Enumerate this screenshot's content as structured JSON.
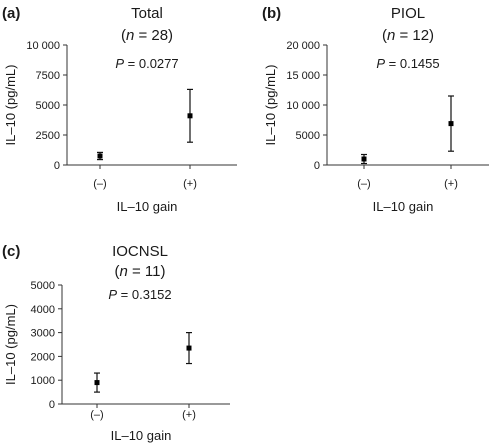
{
  "chart_data": [
    {
      "type": "scatter",
      "panel": "(a)",
      "title": "Total",
      "n_label": "n",
      "n_value": "28",
      "p_label": "P",
      "p_value": "0.0277",
      "xlabel": "IL–10 gain",
      "ylabel": "IL–10 (pg/mL)",
      "categories": [
        "(–)",
        "(+)"
      ],
      "ylim": [
        0,
        10000
      ],
      "yticks": [
        0,
        2500,
        5000,
        7500,
        10000
      ],
      "ytick_labels": [
        "0",
        "2500",
        "5000",
        "7500",
        "10 000"
      ],
      "points": [
        {
          "category": "(–)",
          "value": 750,
          "low": 450,
          "high": 1050
        },
        {
          "category": "(+)",
          "value": 4100,
          "low": 1900,
          "high": 6300
        }
      ]
    },
    {
      "type": "scatter",
      "panel": "(b)",
      "title": "PIOL",
      "n_label": "n",
      "n_value": "12",
      "p_label": "P",
      "p_value": "0.1455",
      "xlabel": "IL–10 gain",
      "ylabel": "IL–10 (pg/mL)",
      "categories": [
        "(–)",
        "(+)"
      ],
      "ylim": [
        0,
        20000
      ],
      "yticks": [
        0,
        5000,
        10000,
        15000,
        20000
      ],
      "ytick_labels": [
        "0",
        "5000",
        "10 000",
        "15 000",
        "20 000"
      ],
      "points": [
        {
          "category": "(–)",
          "value": 1000,
          "low": 250,
          "high": 1750
        },
        {
          "category": "(+)",
          "value": 6900,
          "low": 2300,
          "high": 11500
        }
      ]
    },
    {
      "type": "scatter",
      "panel": "(c)",
      "title": "IOCNSL",
      "n_label": "n",
      "n_value": "11",
      "p_label": "P",
      "p_value": "0.3152",
      "xlabel": "IL–10 gain",
      "ylabel": "IL–10 (pg/mL)",
      "categories": [
        "(–)",
        "(+)"
      ],
      "ylim": [
        0,
        5000
      ],
      "yticks": [
        0,
        1000,
        2000,
        3000,
        4000,
        5000
      ],
      "ytick_labels": [
        "0",
        "1000",
        "2000",
        "3000",
        "4000",
        "5000"
      ],
      "points": [
        {
          "category": "(–)",
          "value": 900,
          "low": 500,
          "high": 1300
        },
        {
          "category": "(+)",
          "value": 2350,
          "low": 1700,
          "high": 3000
        }
      ]
    }
  ]
}
